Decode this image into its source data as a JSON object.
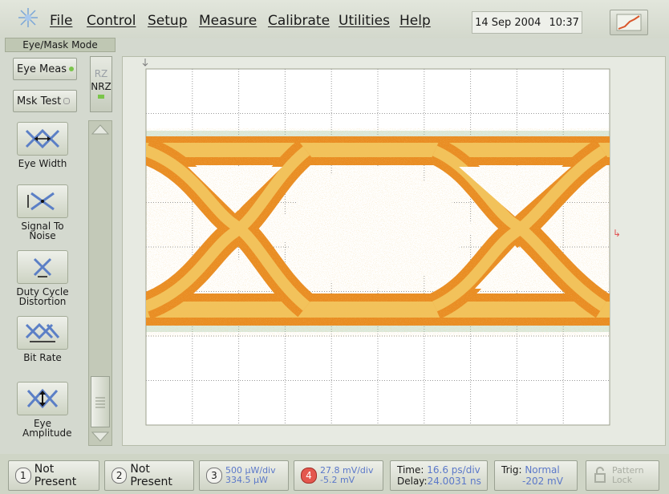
{
  "menubar": {
    "items": [
      "File",
      "Control",
      "Setup",
      "Measure",
      "Calibrate",
      "Utilities",
      "Help"
    ],
    "date": "14 Sep 2004",
    "time": "10:37"
  },
  "mode": {
    "title": "Eye/Mask Mode"
  },
  "controls": {
    "eye_meas": "Eye Meas",
    "msk_test": "Msk Test",
    "pz": "RZ",
    "nrz": "NRZ"
  },
  "tools": [
    {
      "label": "Eye Width"
    },
    {
      "label": "Signal To Noise"
    },
    {
      "label": "Duty Cycle Distortion"
    },
    {
      "label": "Bit Rate"
    },
    {
      "label": "Eye Amplitude"
    }
  ],
  "bottom": {
    "ch1": {
      "num": "1",
      "label": "Not Present"
    },
    "ch2": {
      "num": "2",
      "label": "Not Present"
    },
    "ch3": {
      "num": "3",
      "line1": "500 µW/div",
      "line2": "334.5 µW"
    },
    "ch4": {
      "num": "4",
      "line1": "27.8 mV/div",
      "line2": "-5.2 mV"
    },
    "time": {
      "time_label": "Time:",
      "time_value": "16.6 ps/div",
      "delay_label": "Delay:",
      "delay_value": "24.0031 ns"
    },
    "trig": {
      "label": "Trig:",
      "value1": "Normal",
      "value2": "-202 mV"
    },
    "pattern_lock": "Pattern Lock"
  },
  "colors": {
    "eye_core": "#f0b030",
    "eye_edge": "#e07a1a",
    "noise": "#55a86a",
    "grid": "#8a8a8a"
  }
}
